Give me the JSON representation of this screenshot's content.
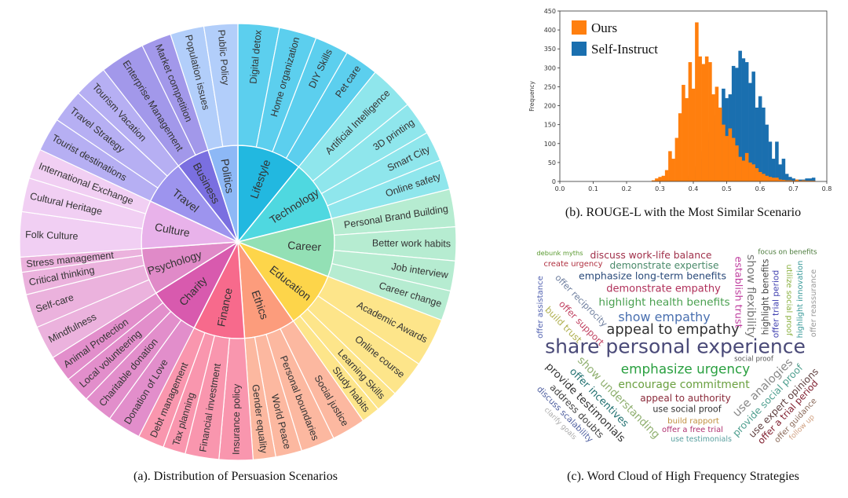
{
  "captions": {
    "a": "(a). Distribution of Persuasion Scenarios",
    "b": "(b). ROUGE-L with the Most Similar Scenario",
    "c": "(c). Word Cloud of High Frequency Strategies"
  },
  "chart_data": [
    {
      "type": "sunburst",
      "title": "",
      "categories": [
        {
          "name": "Lifestyle",
          "color": "#22b8e0",
          "leaf_color": "#5ccfee",
          "leaves": [
            {
              "name": "Digital detox",
              "value": 11
            },
            {
              "name": "Home organization",
              "value": 10
            },
            {
              "name": "DIY Skills",
              "value": 9
            },
            {
              "name": "Pet care",
              "value": 9
            }
          ]
        },
        {
          "name": "Technology",
          "color": "#4fd8e0",
          "leaf_color": "#8fe6ec",
          "leaves": [
            {
              "name": "Artificial Intelligence",
              "value": 12
            },
            {
              "name": "3D printing",
              "value": 9
            },
            {
              "name": "Smart City",
              "value": 8
            },
            {
              "name": "Online safety",
              "value": 8
            }
          ]
        },
        {
          "name": "Career",
          "color": "#93e0b5",
          "leaf_color": "#b6ecd1",
          "leaves": [
            {
              "name": "Personal Brand Building",
              "value": 10
            },
            {
              "name": "Better work habits",
              "value": 9
            },
            {
              "name": "Job interview",
              "value": 8
            },
            {
              "name": "Career change",
              "value": 8
            }
          ]
        },
        {
          "name": "Education",
          "color": "#fdd54a",
          "leaf_color": "#fde58a",
          "leaves": [
            {
              "name": "Academic Awards",
              "value": 13
            },
            {
              "name": "Online course",
              "value": 10
            },
            {
              "name": "Learning Skills",
              "value": 6
            },
            {
              "name": "Study habits",
              "value": 5
            }
          ]
        },
        {
          "name": "Ethics",
          "color": "#fc9c7c",
          "leaf_color": "#fcb8a0",
          "leaves": [
            {
              "name": "Social justice",
              "value": 9
            },
            {
              "name": "Personal boundaries",
              "value": 9
            },
            {
              "name": "World Peace",
              "value": 7
            },
            {
              "name": "Gender equality",
              "value": 6
            }
          ]
        },
        {
          "name": "Finance",
          "color": "#f76a8c",
          "leaf_color": "#f996ae",
          "leaves": [
            {
              "name": "Insurance policy",
              "value": 9
            },
            {
              "name": "Financial investment",
              "value": 9
            },
            {
              "name": "Tax planning",
              "value": 6
            },
            {
              "name": "Debt management",
              "value": 7
            }
          ]
        },
        {
          "name": "Charity",
          "color": "#d85aae",
          "leaf_color": "#e28ecb",
          "leaves": [
            {
              "name": "Donation of Love",
              "value": 9
            },
            {
              "name": "Charitable donation",
              "value": 8
            },
            {
              "name": "Local volunteering",
              "value": 7
            },
            {
              "name": "Animal Protection",
              "value": 7
            }
          ]
        },
        {
          "name": "Psychology",
          "color": "#e08ac8",
          "leaf_color": "#ebb2dd",
          "leaves": [
            {
              "name": "Mindfulness",
              "value": 9
            },
            {
              "name": "Self-care",
              "value": 9
            },
            {
              "name": "Critical thinking",
              "value": 6
            },
            {
              "name": "Stress management",
              "value": 4
            }
          ]
        },
        {
          "name": "Culture",
          "color": "#e8b2ea",
          "leaf_color": "#f1cff3",
          "leaves": [
            {
              "name": "Folk Culture",
              "value": 12
            },
            {
              "name": "Cultural Heritage",
              "value": 9
            },
            {
              "name": "International Exchange",
              "value": 8
            }
          ]
        },
        {
          "name": "Travel",
          "color": "#9d94ee",
          "leaf_color": "#b6aff3",
          "leaves": [
            {
              "name": "Tourist destinations",
              "value": 9
            },
            {
              "name": "Travel Strategy",
              "value": 9
            },
            {
              "name": "Tourism Vacation",
              "value": 9
            }
          ]
        },
        {
          "name": "Business",
          "color": "#7a6fe0",
          "leaf_color": "#a298ea",
          "leaves": [
            {
              "name": "Enterprise Management",
              "value": 12
            },
            {
              "name": "Market competition",
              "value": 8
            }
          ]
        },
        {
          "name": "Politics",
          "color": "#8db8f6",
          "leaf_color": "#b2cefa",
          "leaves": [
            {
              "name": "Population issues",
              "value": 9
            },
            {
              "name": "Public Policy",
              "value": 9
            }
          ]
        }
      ]
    },
    {
      "type": "bar",
      "subtype": "histogram-overlay",
      "xlabel": "",
      "ylabel": "Frequency",
      "xlim": [
        0.0,
        0.8
      ],
      "ylim": [
        0,
        450
      ],
      "xticks": [
        "0.0",
        "0.1",
        "0.2",
        "0.3",
        "0.4",
        "0.5",
        "0.6",
        "0.7",
        "0.8"
      ],
      "yticks": [
        "0",
        "50",
        "100",
        "150",
        "200",
        "250",
        "300",
        "350",
        "400",
        "450"
      ],
      "bin_width": 0.01,
      "legend_position": "top-left",
      "series": [
        {
          "name": "Self-Instruct",
          "color": "#1a6faf",
          "bin_starts": [
            0.375,
            0.385,
            0.395,
            0.405,
            0.415,
            0.425,
            0.435,
            0.445,
            0.455,
            0.465,
            0.475,
            0.485,
            0.495,
            0.505,
            0.515,
            0.525,
            0.535,
            0.545,
            0.555,
            0.565,
            0.575,
            0.585,
            0.595,
            0.605,
            0.615,
            0.625,
            0.635,
            0.645,
            0.655,
            0.665,
            0.675,
            0.685,
            0.695,
            0.705,
            0.715,
            0.725,
            0.735,
            0.745,
            0.755
          ],
          "values": [
            10,
            15,
            30,
            40,
            60,
            80,
            110,
            130,
            160,
            175,
            190,
            245,
            220,
            230,
            305,
            300,
            345,
            325,
            315,
            260,
            290,
            195,
            225,
            195,
            150,
            105,
            60,
            105,
            45,
            60,
            20,
            12,
            8,
            5,
            5,
            5,
            8,
            8,
            10
          ]
        },
        {
          "name": "Ours",
          "color": "#ff7f0e",
          "bin_starts": [
            0.275,
            0.285,
            0.295,
            0.305,
            0.315,
            0.325,
            0.335,
            0.345,
            0.355,
            0.365,
            0.375,
            0.385,
            0.395,
            0.405,
            0.415,
            0.425,
            0.435,
            0.445,
            0.455,
            0.465,
            0.475,
            0.485,
            0.495,
            0.505,
            0.515,
            0.525,
            0.535,
            0.545,
            0.555,
            0.565,
            0.575,
            0.585,
            0.595,
            0.605,
            0.615,
            0.625,
            0.635,
            0.645,
            0.655,
            0.665,
            0.675,
            0.685,
            0.695,
            0.705,
            0.715,
            0.725,
            0.735,
            0.745,
            0.755
          ],
          "values": [
            3,
            8,
            12,
            15,
            30,
            80,
            60,
            115,
            180,
            255,
            220,
            315,
            245,
            420,
            330,
            310,
            330,
            315,
            230,
            250,
            195,
            150,
            120,
            140,
            115,
            95,
            65,
            55,
            75,
            50,
            45,
            35,
            25,
            20,
            15,
            12,
            10,
            10,
            5,
            4,
            3,
            3,
            2,
            5,
            2,
            3,
            2,
            2,
            2
          ]
        }
      ]
    },
    {
      "type": "wordcloud",
      "words": [
        {
          "text": "share personal experience",
          "color": "#4a4a78"
        },
        {
          "text": "appeal to empathy",
          "color": "#333333"
        },
        {
          "text": "emphasize urgency",
          "color": "#2aa040"
        },
        {
          "text": "show empathy",
          "color": "#4a70b0"
        },
        {
          "text": "highlight health benefits",
          "color": "#4aa050"
        },
        {
          "text": "encourage commitment",
          "color": "#6aa040"
        },
        {
          "text": "demonstrate empathy",
          "color": "#b0305a"
        },
        {
          "text": "emphasize long-term benefits",
          "color": "#2a4a7a"
        },
        {
          "text": "discuss work-life balance",
          "color": "#a0304a"
        },
        {
          "text": "demonstrate expertise",
          "color": "#4a8a6a"
        },
        {
          "text": "appeal to authority",
          "color": "#8a2a3a"
        },
        {
          "text": "use social proof",
          "color": "#333333"
        },
        {
          "text": "build rapport",
          "color": "#c09040"
        },
        {
          "text": "offer a free trial",
          "color": "#b03070"
        },
        {
          "text": "use testimonials",
          "color": "#5aa0a0"
        },
        {
          "text": "social proof",
          "color": "#555555"
        },
        {
          "text": "debunk myths",
          "color": "#5a9a30"
        },
        {
          "text": "create urgency",
          "color": "#b03040"
        },
        {
          "text": "focus on benefits",
          "color": "#4a7a3a"
        },
        {
          "text": "establish trust",
          "color": "#c040a0"
        },
        {
          "text": "show flexibility",
          "color": "#777777"
        },
        {
          "text": "highlight benefits",
          "color": "#444444"
        },
        {
          "text": "offer trial period",
          "color": "#4040b0"
        },
        {
          "text": "utilize social proof",
          "color": "#8ab040"
        },
        {
          "text": "highlight innovation",
          "color": "#3a9a9a"
        },
        {
          "text": "offer reassurance",
          "color": "#999999"
        },
        {
          "text": "offer assistance",
          "color": "#5060b0"
        },
        {
          "text": "offer reciprocity",
          "color": "#7080a0"
        },
        {
          "text": "offer support",
          "color": "#c04060"
        },
        {
          "text": "build trust",
          "color": "#b0b050"
        },
        {
          "text": "show understanding",
          "color": "#90b070"
        },
        {
          "text": "offer incentives",
          "color": "#207070"
        },
        {
          "text": "provide testimonials",
          "color": "#333333"
        },
        {
          "text": "address doubts",
          "color": "#444444"
        },
        {
          "text": "discuss scalability",
          "color": "#5060a0"
        },
        {
          "text": "clarify goals",
          "color": "#aaaaaa"
        },
        {
          "text": "use analogies",
          "color": "#888888"
        },
        {
          "text": "provide social proof",
          "color": "#50a090"
        },
        {
          "text": "use expert opinions",
          "color": "#604040"
        },
        {
          "text": "offer a trial period",
          "color": "#802030"
        },
        {
          "text": "offer guidance",
          "color": "#8a6a5a"
        },
        {
          "text": "follow up",
          "color": "#d0a080"
        }
      ]
    }
  ]
}
